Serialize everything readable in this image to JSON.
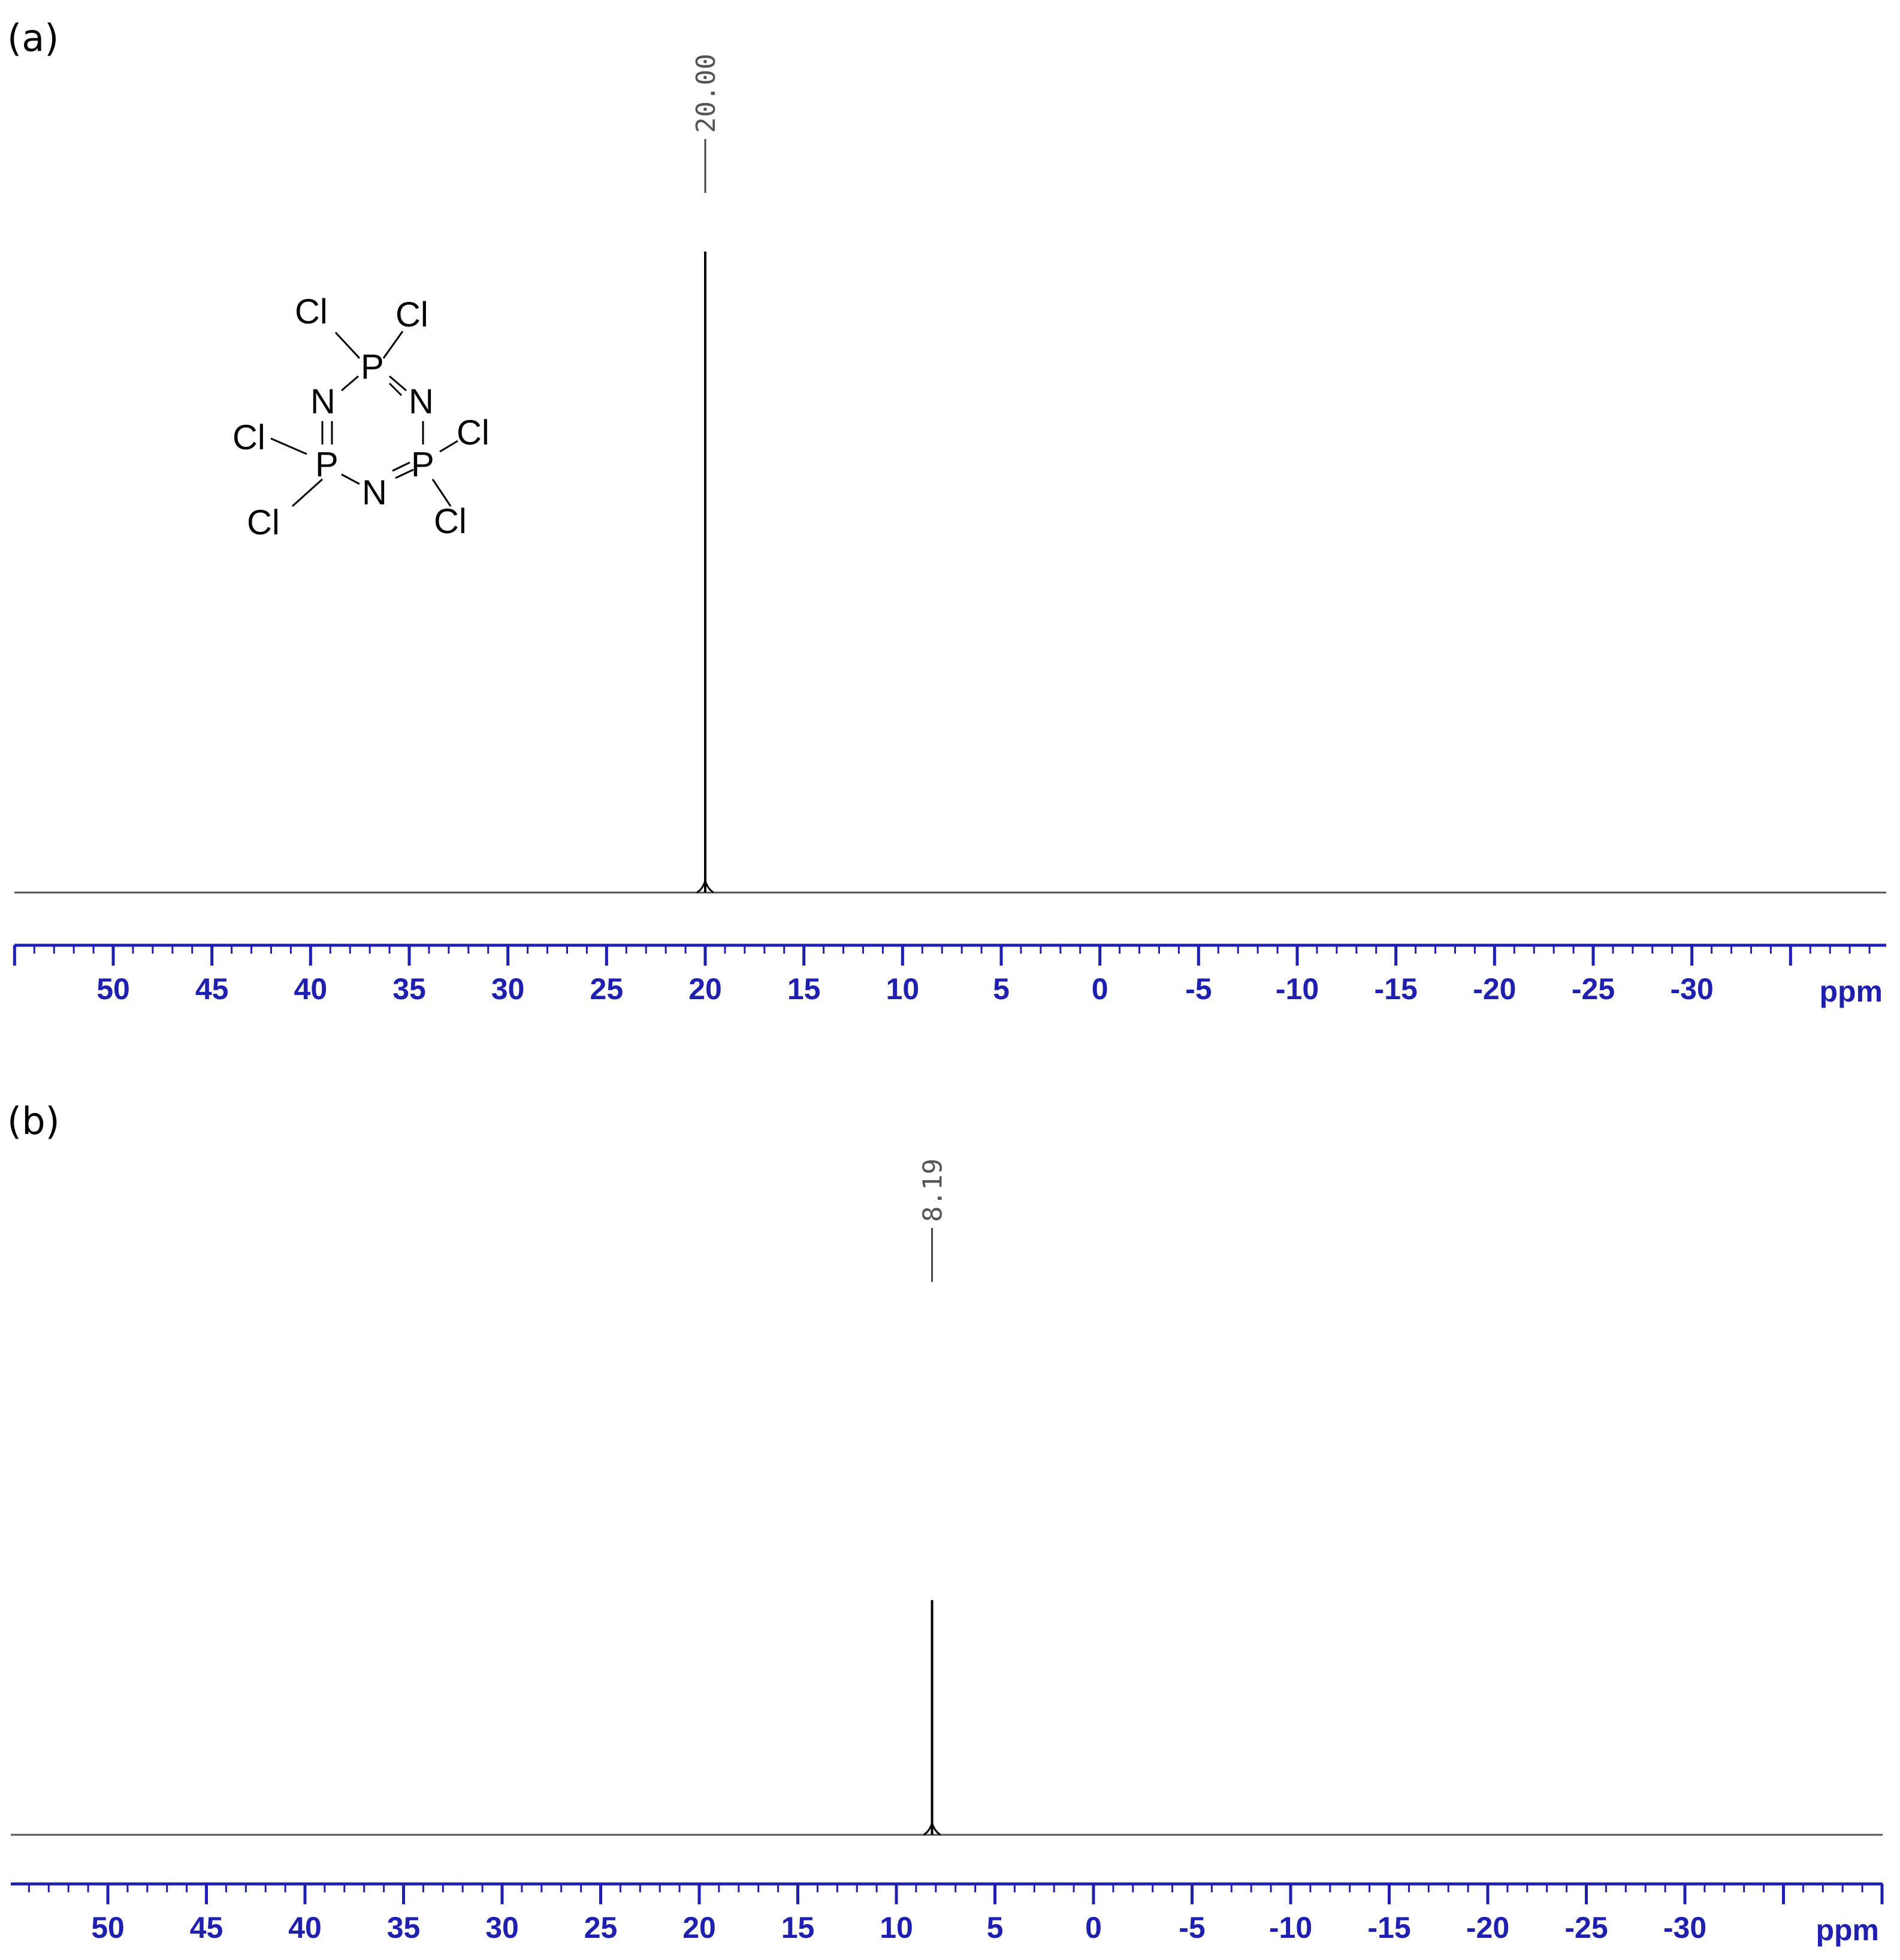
{
  "chart_data": [
    {
      "type": "line",
      "panel_label": "(a)",
      "xlabel": "ppm",
      "xlim": [
        55,
        -40
      ],
      "x_ticks": [
        50,
        45,
        40,
        35,
        30,
        25,
        20,
        15,
        10,
        5,
        0,
        -5,
        -10,
        -15,
        -20,
        -25,
        -30
      ],
      "series": [
        {
          "peaks": [
            {
              "ppm": 20.0,
              "label": "20.00",
              "relative_height": 1.0
            }
          ]
        }
      ],
      "structure_label_atoms": [
        "Cl",
        "Cl",
        "P",
        "N",
        "N",
        "Cl",
        "P",
        "P",
        "Cl",
        "N",
        "Cl",
        "Cl"
      ]
    },
    {
      "type": "line",
      "panel_label": "(b)",
      "xlabel": "ppm",
      "xlim": [
        55,
        -40
      ],
      "x_ticks": [
        50,
        45,
        40,
        35,
        30,
        25,
        20,
        15,
        10,
        5,
        0,
        -5,
        -10,
        -15,
        -20,
        -25,
        -30
      ],
      "series": [
        {
          "peaks": [
            {
              "ppm": 8.19,
              "label": "8.19",
              "relative_height": 0.6
            }
          ]
        }
      ]
    }
  ],
  "colors": {
    "axis": "#1f1fb0",
    "trace": "#000000",
    "peak_label": "#555555"
  }
}
